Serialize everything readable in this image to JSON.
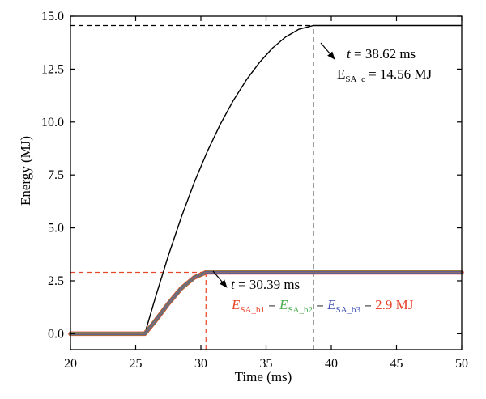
{
  "chart_data": {
    "type": "line",
    "xlabel": "Time (ms)",
    "ylabel": "Energy (MJ)",
    "xlim": [
      20,
      50
    ],
    "ylim": [
      -0.75,
      15
    ],
    "xticks": [
      20,
      25,
      30,
      35,
      40,
      45,
      50
    ],
    "yticks": [
      0.0,
      2.5,
      5.0,
      7.5,
      10.0,
      12.5,
      15.0
    ],
    "xtick_labels": [
      "20",
      "25",
      "30",
      "35",
      "40",
      "45",
      "50"
    ],
    "ytick_labels": [
      "0.0",
      "2.5",
      "5.0",
      "7.5",
      "10.0",
      "12.5",
      "15.0"
    ],
    "grid": false,
    "series": [
      {
        "color": "#000000",
        "x": [
          20,
          25.7,
          26.5,
          27.5,
          28.5,
          29.5,
          30.5,
          31.5,
          32.5,
          33.5,
          34.5,
          35.5,
          36.5,
          37.5,
          38.62,
          40,
          45,
          50
        ],
        "y": [
          0,
          0,
          1.69,
          3.68,
          5.51,
          7.16,
          8.62,
          9.91,
          11.03,
          12.0,
          12.82,
          13.5,
          14.02,
          14.38,
          14.56,
          14.56,
          14.56,
          14.56
        ]
      },
      {
        "color": "#e8452b",
        "x": [
          20,
          25.7,
          26.5,
          27.5,
          28.5,
          29.5,
          30.39,
          35,
          40,
          45,
          50
        ],
        "y": [
          0,
          0,
          0.6,
          1.42,
          2.15,
          2.66,
          2.9,
          2.9,
          2.9,
          2.9,
          2.9
        ]
      },
      {
        "color": "#4caf50",
        "x": [
          20,
          25.7,
          26.5,
          27.5,
          28.5,
          29.5,
          30.39,
          35,
          40,
          45,
          50
        ],
        "y": [
          0,
          0,
          0.6,
          1.42,
          2.15,
          2.66,
          2.9,
          2.9,
          2.9,
          2.9,
          2.9
        ]
      },
      {
        "color": "#3f51b5",
        "x": [
          20,
          25.7,
          26.5,
          27.5,
          28.5,
          29.5,
          30.39,
          35,
          40,
          45,
          50
        ],
        "y": [
          0,
          0,
          0.6,
          1.42,
          2.15,
          2.66,
          2.9,
          2.9,
          2.9,
          2.9,
          2.9
        ]
      },
      {
        "color": "#8a6a6a",
        "x": [
          20,
          25.7,
          26.5,
          27.5,
          28.5,
          29.5,
          30.39,
          35,
          40,
          45,
          50
        ],
        "y": [
          0,
          0,
          0.6,
          1.42,
          2.15,
          2.66,
          2.9,
          2.9,
          2.9,
          2.9,
          2.9
        ]
      }
    ],
    "reference_lines": [
      {
        "color": "#000000",
        "x": [
          20,
          38.62
        ],
        "y": [
          14.56,
          14.56
        ]
      },
      {
        "color": "#000000",
        "x": [
          38.62,
          38.62
        ],
        "y": [
          -0.75,
          14.56
        ]
      },
      {
        "color": "#e8452b",
        "x": [
          20,
          30.39
        ],
        "y": [
          2.9,
          2.9
        ]
      },
      {
        "color": "#e8452b",
        "x": [
          30.39,
          30.39
        ],
        "y": [
          -0.75,
          2.9
        ]
      }
    ],
    "annotations": {
      "black_time": {
        "var": "t",
        "value": " = 38.62 ms"
      },
      "black_energy": {
        "base": "E",
        "sub": "SA_c",
        "value": " = 14.56 MJ"
      },
      "red_time": {
        "var": "t",
        "value": " = 30.39 ms"
      },
      "red_energy": {
        "e1": "E",
        "s1": "SA_b1",
        "eq1": " = ",
        "e2": "E",
        "s2": "SA_b2",
        "eq2": " = ",
        "e3": "E",
        "s3": "SA_b3",
        "eq3": " = ",
        "value": "2.9 MJ",
        "c1": "#e8452b",
        "c2": "#4caf50",
        "c3": "#3f51b5"
      }
    }
  }
}
